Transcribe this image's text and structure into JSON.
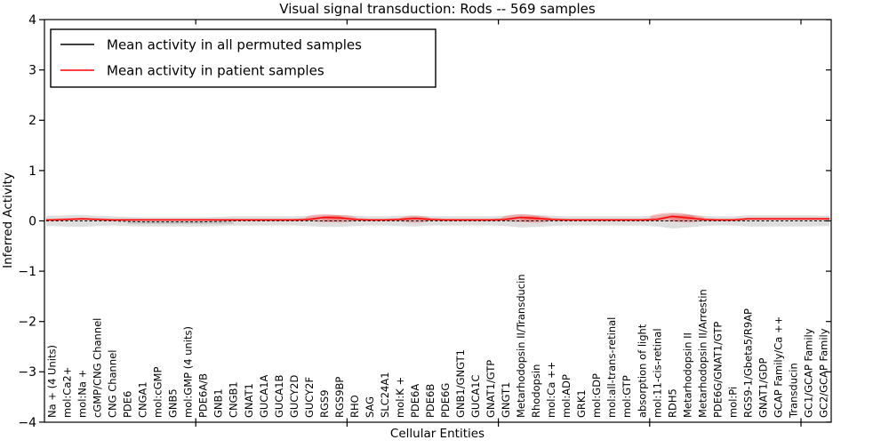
{
  "figure": {
    "title": "Visual signal transduction: Rods -- 569 samples",
    "xlabel": "Cellular Entities",
    "ylabel": "Inferred Activity",
    "legend": [
      {
        "label": "Mean activity in all permuted samples",
        "color": "#000000",
        "style": "solid"
      },
      {
        "label": "Mean activity in patient samples",
        "color": "#ff0000",
        "style": "solid"
      }
    ]
  },
  "chart_data": {
    "type": "line",
    "title": "Visual signal transduction: Rods -- 569 samples",
    "xlabel": "Cellular Entities",
    "ylabel": "Inferred Activity",
    "ylim": [
      -4,
      4
    ],
    "yticks": [
      -4,
      -3,
      -2,
      -1,
      0,
      1,
      2,
      3,
      4
    ],
    "xtick_positions": [
      10,
      20,
      30,
      40,
      50
    ],
    "x_axis_range": [
      0,
      52
    ],
    "grid": false,
    "legend_position": "upper left",
    "categories": [
      "Na + (4 Units)",
      "mol:Ca2+",
      "mol:Na +",
      "cGMP/CNG Channel",
      "CNG Channel",
      "PDE6",
      "CNGA1",
      "mol:cGMP",
      "GNB5",
      "mol:GMP (4 units)",
      "PDE6A/B",
      "GNB1",
      "CNGB1",
      "GNAT1",
      "GUCA1A",
      "GUCA1B",
      "GUCY2D",
      "GUCY2F",
      "RGS9",
      "RGS9BP",
      "RHO",
      "SAG",
      "SLC24A1",
      "mol:K +",
      "PDE6A",
      "PDE6B",
      "PDE6G",
      "GNB1/GNGT1",
      "GUCA1C",
      "GNAT1/GTP",
      "GNGT1",
      "Metarhodopsin II/Transducin",
      "Rhodopsin",
      "mol:Ca ++",
      "mol:ADP",
      "GRK1",
      "mol:GDP",
      "mol:all-trans-retinal",
      "mol:GTP",
      "absorption of light",
      "mol:11-cis-retinal",
      "RDH5",
      "Metarhodopsin II",
      "Metarhodopsin II/Arrestin",
      "PDE6G/GNAT1/GTP",
      "mol:Pi",
      "RGS9-1/Gbeta5/R9AP",
      "GNAT1/GDP",
      "GCAP Family/Ca ++",
      "Transducin",
      "GC1/GCAP Family",
      "GC2/GCAP Family"
    ],
    "series": [
      {
        "name": "Mean activity in all permuted samples",
        "color": "#000000",
        "style": "dashed",
        "values": [
          0,
          0,
          0,
          0,
          0,
          -0.01,
          -0.02,
          -0.02,
          -0.02,
          -0.02,
          -0.02,
          -0.01,
          0,
          0,
          0,
          0,
          0,
          0,
          0,
          0,
          0,
          0,
          0,
          0,
          0,
          0,
          0,
          0,
          0,
          0,
          0,
          0,
          0,
          0,
          0,
          0,
          0,
          0,
          0,
          0,
          0,
          0,
          0,
          0,
          0,
          0,
          0,
          0,
          0,
          0,
          0,
          0
        ]
      },
      {
        "name": "Mean activity in patient samples",
        "color": "#ff0000",
        "style": "solid",
        "values": [
          0.02,
          0.03,
          0.04,
          0.03,
          0.02,
          0.02,
          0.02,
          0.02,
          0.02,
          0.02,
          0.02,
          0.02,
          0.02,
          0.02,
          0.02,
          0.02,
          0.02,
          0.03,
          0.07,
          0.06,
          0.03,
          0.02,
          0.02,
          0.03,
          0.05,
          0.03,
          0.02,
          0.02,
          0.02,
          0.02,
          0.03,
          0.07,
          0.05,
          0.03,
          0.02,
          0.02,
          0.02,
          0.02,
          0.02,
          0.02,
          0.03,
          0.09,
          0.06,
          0.03,
          0.02,
          0.02,
          0.04,
          0.04,
          0.04,
          0.04,
          0.04,
          0.04
        ]
      }
    ],
    "band": {
      "name": "spread of permuted sample activity",
      "color": "#dedede",
      "halfwidth": [
        0.1,
        0.11,
        0.12,
        0.1,
        0.09,
        0.09,
        0.09,
        0.09,
        0.09,
        0.09,
        0.09,
        0.09,
        0.09,
        0.09,
        0.09,
        0.09,
        0.09,
        0.1,
        0.12,
        0.12,
        0.1,
        0.09,
        0.09,
        0.1,
        0.11,
        0.09,
        0.09,
        0.09,
        0.09,
        0.09,
        0.1,
        0.13,
        0.12,
        0.1,
        0.09,
        0.09,
        0.09,
        0.09,
        0.09,
        0.09,
        0.11,
        0.15,
        0.13,
        0.1,
        0.09,
        0.09,
        0.11,
        0.11,
        0.11,
        0.11,
        0.11,
        0.1
      ]
    }
  }
}
